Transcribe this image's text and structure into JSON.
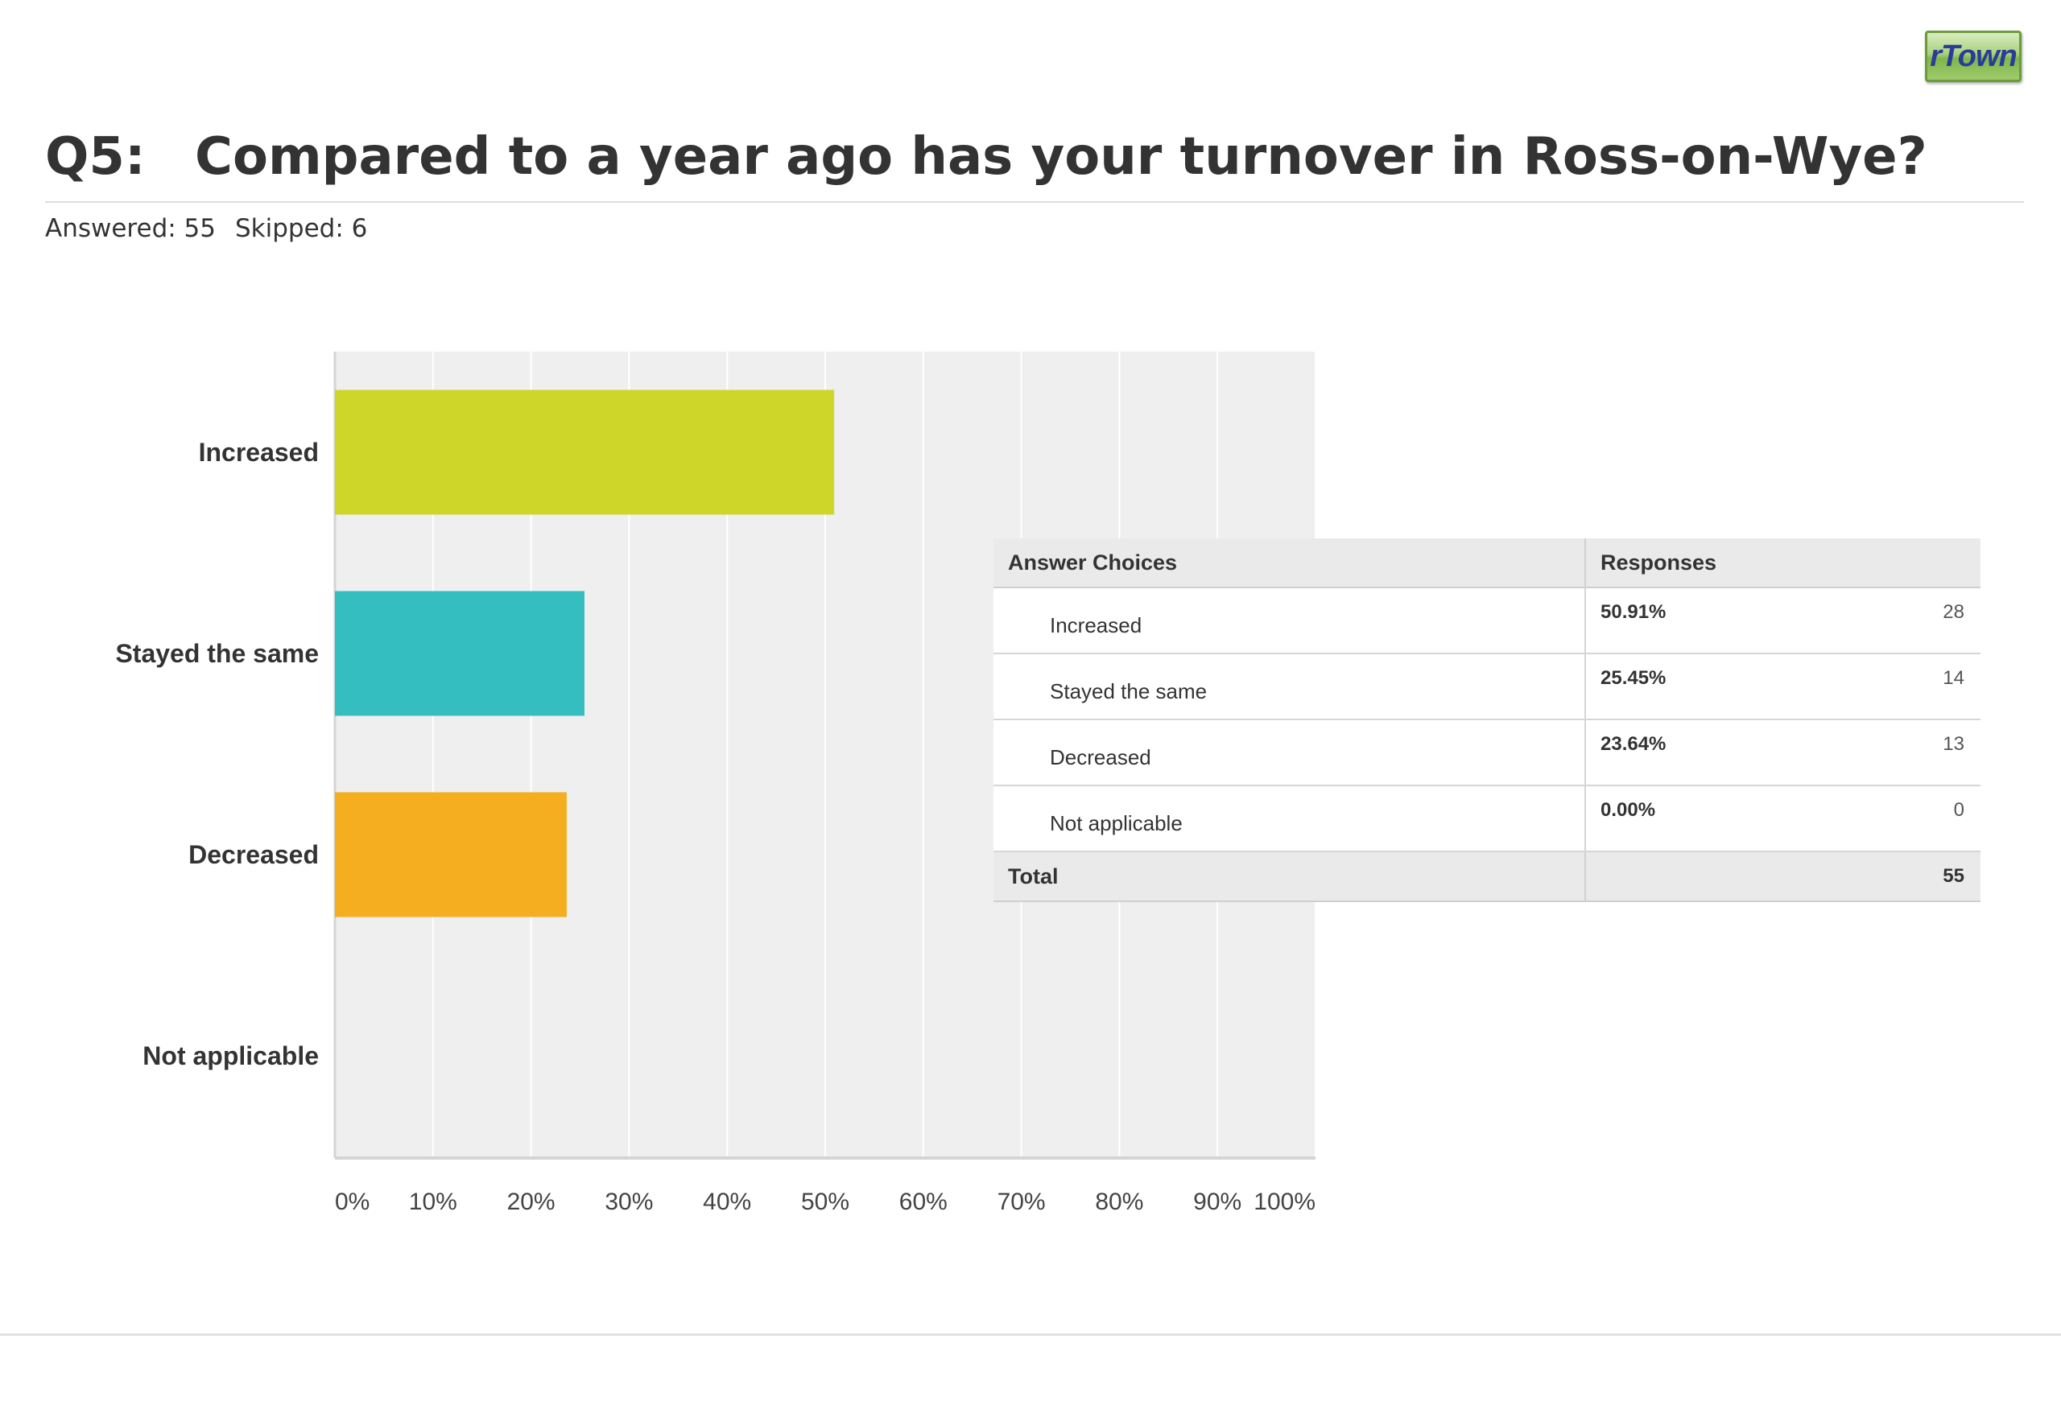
{
  "logo": {
    "text": "rTown"
  },
  "header": {
    "question_number": "Q5:",
    "question_text": "Compared to a year ago has your turnover in Ross-on-Wye?",
    "answered": "Answered: 55",
    "skipped": "Skipped: 6"
  },
  "chart_data": {
    "type": "bar",
    "orientation": "horizontal",
    "categories": [
      "Increased",
      "Stayed the same",
      "Decreased",
      "Not applicable"
    ],
    "values": [
      50.91,
      25.45,
      23.64,
      0.0
    ],
    "colors": [
      "#cfd62a",
      "#35bec0",
      "#f5ae20",
      "#9a9a9a"
    ],
    "xlim": [
      0,
      100
    ],
    "x_ticks": [
      "0%",
      "10%",
      "20%",
      "30%",
      "40%",
      "50%",
      "60%",
      "70%",
      "80%",
      "90%",
      "100%"
    ],
    "grid": true,
    "background": "#efefef"
  },
  "table": {
    "header_choices": "Answer Choices",
    "header_responses": "Responses",
    "rows": [
      {
        "choice": "Increased",
        "percent": "50.91%",
        "count": "28"
      },
      {
        "choice": "Stayed the same",
        "percent": "25.45%",
        "count": "14"
      },
      {
        "choice": "Decreased",
        "percent": "23.64%",
        "count": "13"
      },
      {
        "choice": "Not applicable",
        "percent": "0.00%",
        "count": "0"
      }
    ],
    "total_label": "Total",
    "total_value": "55"
  }
}
